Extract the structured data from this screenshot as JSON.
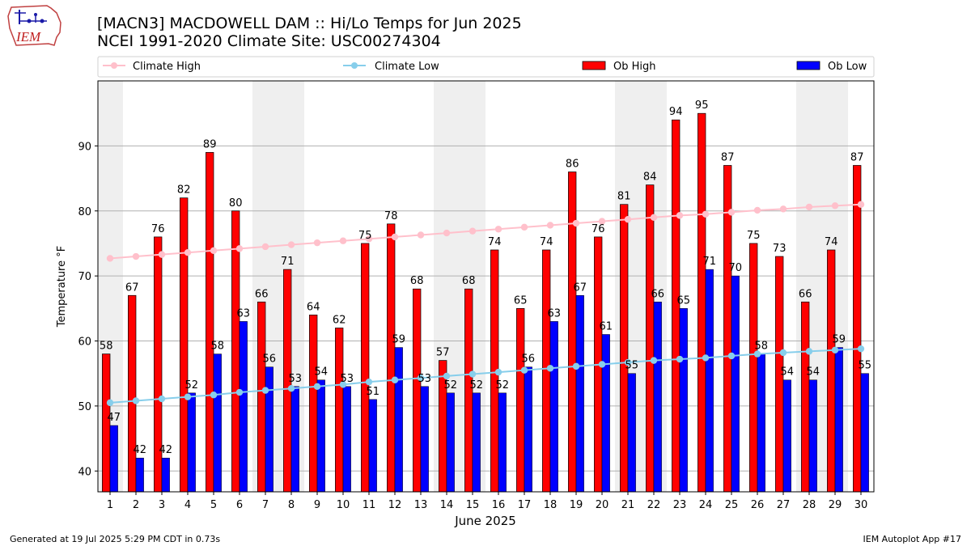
{
  "logo": {
    "text": "IEM"
  },
  "header": {
    "title": "[MACN3] MACDOWELL DAM :: Hi/Lo Temps for Jun 2025",
    "subtitle": "NCEI 1991-2020 Climate Site: USC00274304"
  },
  "footer": {
    "left": "Generated at 19 Jul 2025 5:29 PM CDT in 0.73s",
    "right": "IEM Autoplot App #17"
  },
  "colors": {
    "ob_high": "#ff0000",
    "ob_low": "#0000ff",
    "climate_high": "#ffc0cb",
    "climate_low": "#87ceeb",
    "weekend_shade": "#efefef"
  },
  "chart_data": {
    "type": "bar",
    "xlabel": "June 2025",
    "ylabel": "Temperature °F",
    "ylim": [
      36.8,
      100
    ],
    "yticks": [
      40,
      50,
      60,
      70,
      80,
      90
    ],
    "grid": true,
    "legend_position": "top",
    "categories": [
      "1",
      "2",
      "3",
      "4",
      "5",
      "6",
      "7",
      "8",
      "9",
      "10",
      "11",
      "12",
      "13",
      "14",
      "15",
      "16",
      "17",
      "18",
      "19",
      "20",
      "21",
      "22",
      "23",
      "24",
      "25",
      "26",
      "27",
      "28",
      "29",
      "30"
    ],
    "shaded_days": [
      1,
      7,
      8,
      14,
      15,
      21,
      22,
      28,
      29
    ],
    "series": [
      {
        "name": "Ob High",
        "kind": "bar",
        "values": [
          58,
          67,
          76,
          82,
          89,
          80,
          66,
          71,
          64,
          62,
          75,
          78,
          68,
          57,
          68,
          74,
          65,
          74,
          86,
          76,
          81,
          84,
          94,
          95,
          87,
          75,
          73,
          66,
          74,
          87
        ]
      },
      {
        "name": "Ob Low",
        "kind": "bar",
        "values": [
          47,
          42,
          42,
          52,
          58,
          63,
          56,
          53,
          54,
          53,
          51,
          59,
          53,
          52,
          52,
          52,
          56,
          63,
          67,
          61,
          55,
          66,
          65,
          71,
          70,
          58,
          54,
          54,
          59,
          55
        ]
      },
      {
        "name": "Climate High",
        "kind": "line",
        "values": [
          72.7,
          73.0,
          73.3,
          73.6,
          73.9,
          74.2,
          74.5,
          74.8,
          75.1,
          75.4,
          75.7,
          76.0,
          76.3,
          76.6,
          76.9,
          77.2,
          77.5,
          77.8,
          78.1,
          78.4,
          78.7,
          79.0,
          79.3,
          79.5,
          79.8,
          80.1,
          80.3,
          80.6,
          80.8,
          81.0
        ]
      },
      {
        "name": "Climate Low",
        "kind": "line",
        "values": [
          50.5,
          50.8,
          51.1,
          51.4,
          51.7,
          52.1,
          52.4,
          52.7,
          53.0,
          53.3,
          53.7,
          54.0,
          54.3,
          54.6,
          54.9,
          55.2,
          55.5,
          55.8,
          56.1,
          56.4,
          56.7,
          57.0,
          57.2,
          57.4,
          57.7,
          58.0,
          58.2,
          58.4,
          58.6,
          58.8
        ]
      }
    ]
  }
}
